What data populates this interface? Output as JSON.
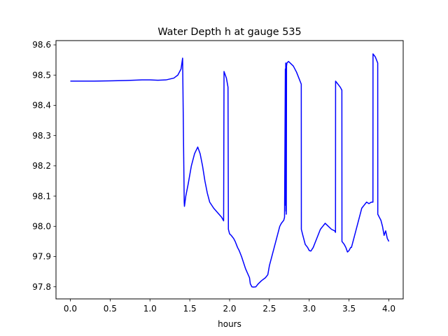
{
  "chart_data": {
    "type": "line",
    "title": "Water Depth h at gauge 535",
    "xlabel": "hours",
    "ylabel": "",
    "xlim": [
      -0.18,
      4.18
    ],
    "ylim": [
      97.76,
      98.614
    ],
    "grid": false,
    "legend": "none",
    "xticks": [
      0.0,
      0.5,
      1.0,
      1.5,
      2.0,
      2.5,
      3.0,
      3.5,
      4.0
    ],
    "xtick_labels": [
      "0.0",
      "0.5",
      "1.0",
      "1.5",
      "2.0",
      "2.5",
      "3.0",
      "3.5",
      "4.0"
    ],
    "yticks": [
      97.8,
      97.9,
      98.0,
      98.1,
      98.2,
      98.3,
      98.4,
      98.5,
      98.6
    ],
    "ytick_labels": [
      "97.8",
      "97.9",
      "98.0",
      "98.1",
      "98.2",
      "98.3",
      "98.4",
      "98.5",
      "98.6"
    ],
    "series": [
      {
        "color": "#0000ff",
        "x": [
          0.0,
          0.1,
          0.3,
          0.5,
          0.7,
          0.9,
          1.0,
          1.1,
          1.2,
          1.3,
          1.35,
          1.39,
          1.41,
          1.43,
          1.433,
          1.45,
          1.48,
          1.52,
          1.56,
          1.6,
          1.63,
          1.66,
          1.69,
          1.72,
          1.75,
          1.8,
          1.85,
          1.9,
          1.925,
          1.93,
          1.96,
          1.98,
          1.985,
          2.0,
          2.02,
          2.05,
          2.07,
          2.1,
          2.12,
          2.15,
          2.2,
          2.25,
          2.26,
          2.28,
          2.3,
          2.33,
          2.36,
          2.4,
          2.45,
          2.48,
          2.5,
          2.53,
          2.56,
          2.6,
          2.63,
          2.65,
          2.68,
          2.69,
          2.7,
          2.702,
          2.705,
          2.708,
          2.71,
          2.712,
          2.715,
          2.72,
          2.74,
          2.76,
          2.8,
          2.84,
          2.87,
          2.9,
          2.901,
          2.92,
          2.95,
          2.98,
          3.0,
          3.02,
          3.05,
          3.08,
          3.11,
          3.14,
          3.17,
          3.2,
          3.24,
          3.28,
          3.32,
          3.33,
          3.331,
          3.36,
          3.39,
          3.41,
          3.411,
          3.44,
          3.46,
          3.48,
          3.5,
          3.52,
          3.53,
          3.55,
          3.57,
          3.6,
          3.63,
          3.66,
          3.69,
          3.72,
          3.75,
          3.78,
          3.8,
          3.801,
          3.83,
          3.86,
          3.861,
          3.88,
          3.9,
          3.92,
          3.94,
          3.96,
          3.98,
          4.0
        ],
        "y": [
          98.48,
          98.48,
          98.48,
          98.481,
          98.482,
          98.484,
          98.484,
          98.483,
          98.484,
          98.49,
          98.5,
          98.52,
          98.556,
          98.08,
          98.066,
          98.1,
          98.14,
          98.2,
          98.24,
          98.262,
          98.24,
          98.2,
          98.15,
          98.11,
          98.08,
          98.06,
          98.045,
          98.03,
          98.018,
          98.512,
          98.49,
          98.46,
          97.99,
          97.975,
          97.97,
          97.96,
          97.95,
          97.93,
          97.92,
          97.9,
          97.86,
          97.83,
          97.81,
          97.8,
          97.799,
          97.8,
          97.81,
          97.82,
          97.83,
          97.84,
          97.87,
          97.9,
          97.93,
          97.97,
          98.0,
          98.01,
          98.02,
          98.03,
          98.52,
          98.07,
          98.54,
          98.05,
          98.5,
          98.04,
          98.53,
          98.54,
          98.545,
          98.54,
          98.53,
          98.51,
          98.49,
          98.47,
          97.99,
          97.97,
          97.94,
          97.93,
          97.92,
          97.918,
          97.93,
          97.95,
          97.97,
          97.99,
          98.0,
          98.01,
          98.0,
          97.99,
          97.985,
          97.98,
          98.48,
          98.47,
          98.46,
          98.45,
          97.95,
          97.94,
          97.93,
          97.915,
          97.92,
          97.93,
          97.93,
          97.95,
          97.97,
          98.0,
          98.03,
          98.06,
          98.07,
          98.08,
          98.075,
          98.08,
          98.08,
          98.57,
          98.56,
          98.54,
          98.04,
          98.03,
          98.02,
          98.0,
          97.97,
          97.985,
          97.96,
          97.95
        ]
      }
    ]
  }
}
